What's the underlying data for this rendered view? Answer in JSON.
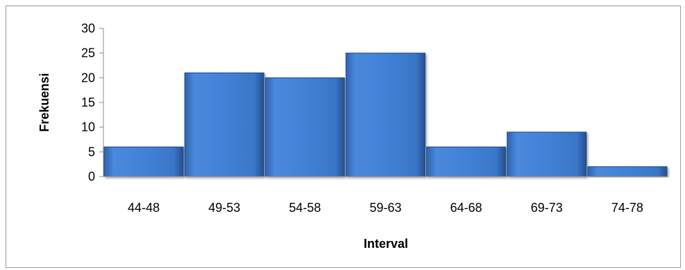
{
  "chart_data": {
    "type": "bar",
    "title": "",
    "xlabel": "Interval",
    "ylabel": "Frekuensi",
    "categories": [
      "44-48",
      "49-53",
      "54-58",
      "59-63",
      "64-68",
      "69-73",
      "74-78"
    ],
    "values": [
      6,
      21,
      20,
      25,
      6,
      9,
      2
    ],
    "ylim": [
      0,
      30
    ],
    "yticks": [
      0,
      5,
      10,
      15,
      20,
      25,
      30
    ],
    "grid": false,
    "legend": "none",
    "bar_color": "#3f7bcf",
    "bar_edge_color": "#1f4d8c"
  }
}
